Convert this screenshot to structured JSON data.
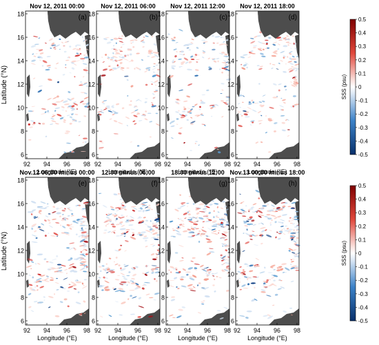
{
  "figure": {
    "colorbar": {
      "label": "SSS (psu)",
      "ticks": [
        "0.5",
        "0.4",
        "0.3",
        "0.2",
        "0.1",
        "0",
        "-0.1",
        "-0.2",
        "-0.3",
        "-0.4",
        "-0.5"
      ],
      "colors": {
        "high": "#8b0000",
        "mid": "#ffffff",
        "low": "#08306b"
      }
    },
    "axes": {
      "ylabel": "Latitude (°N)",
      "xlabel": "Longitude (°E)",
      "yticks": [
        "18",
        "16",
        "14",
        "12",
        "10",
        "8",
        "6"
      ],
      "xticks": [
        "92",
        "94",
        "96",
        "98"
      ]
    },
    "rows": [
      {
        "panels": [
          {
            "title": "Nov 12, 2011 00:00",
            "letter": "(a)"
          },
          {
            "title": "Nov 12, 2011 06:00",
            "letter": "(b)"
          },
          {
            "title": "Nov 12, 2011 12:00",
            "letter": "(c)"
          },
          {
            "title": "Nov 12, 2011 18:00",
            "letter": "(d)"
          }
        ]
      },
      {
        "panels": [
          {
            "title": "Nov.12 06:00 minus 00:00",
            "letter": "(e)"
          },
          {
            "title": "12:00 minus 06:00",
            "letter": "(f)"
          },
          {
            "title": "18:00 minus 12:00",
            "letter": "(g)"
          },
          {
            "title": "Nov.13 00:00 minus 18:00",
            "letter": "(h)"
          }
        ]
      }
    ],
    "land_color": "#4d4d4d"
  }
}
